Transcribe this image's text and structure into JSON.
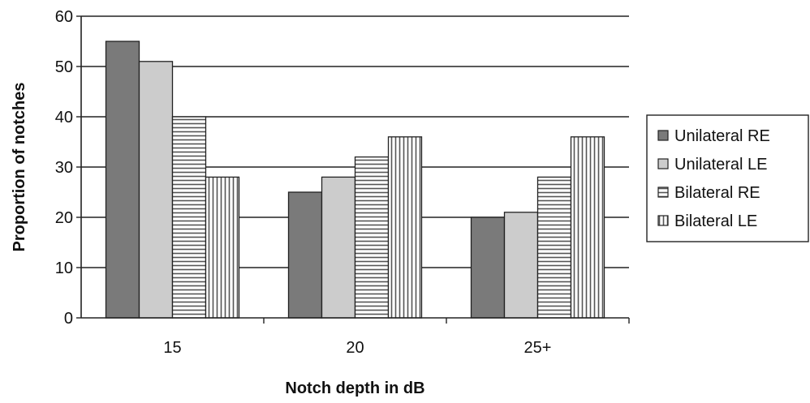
{
  "chart_data": {
    "type": "bar",
    "title": "",
    "xlabel": "Notch depth in dB",
    "ylabel": "Proportion of notches",
    "categories": [
      "15",
      "20",
      "25+"
    ],
    "ylim": [
      0,
      60
    ],
    "yticks": [
      0,
      10,
      20,
      30,
      40,
      50,
      60
    ],
    "grid": "horizontal",
    "legend_position": "right",
    "series": [
      {
        "name": "Unilateral RE",
        "values": [
          55,
          25,
          20
        ],
        "pattern": "dark-solid",
        "color": "#7a7a7a"
      },
      {
        "name": "Unilateral LE",
        "values": [
          51,
          28,
          21
        ],
        "pattern": "light-solid",
        "color": "#cccccc"
      },
      {
        "name": "Bilateral RE",
        "values": [
          40,
          32,
          28
        ],
        "pattern": "horizontal-lines",
        "color": "#555555"
      },
      {
        "name": "Bilateral LE",
        "values": [
          28,
          36,
          36
        ],
        "pattern": "vertical-lines",
        "color": "#555555"
      }
    ]
  }
}
